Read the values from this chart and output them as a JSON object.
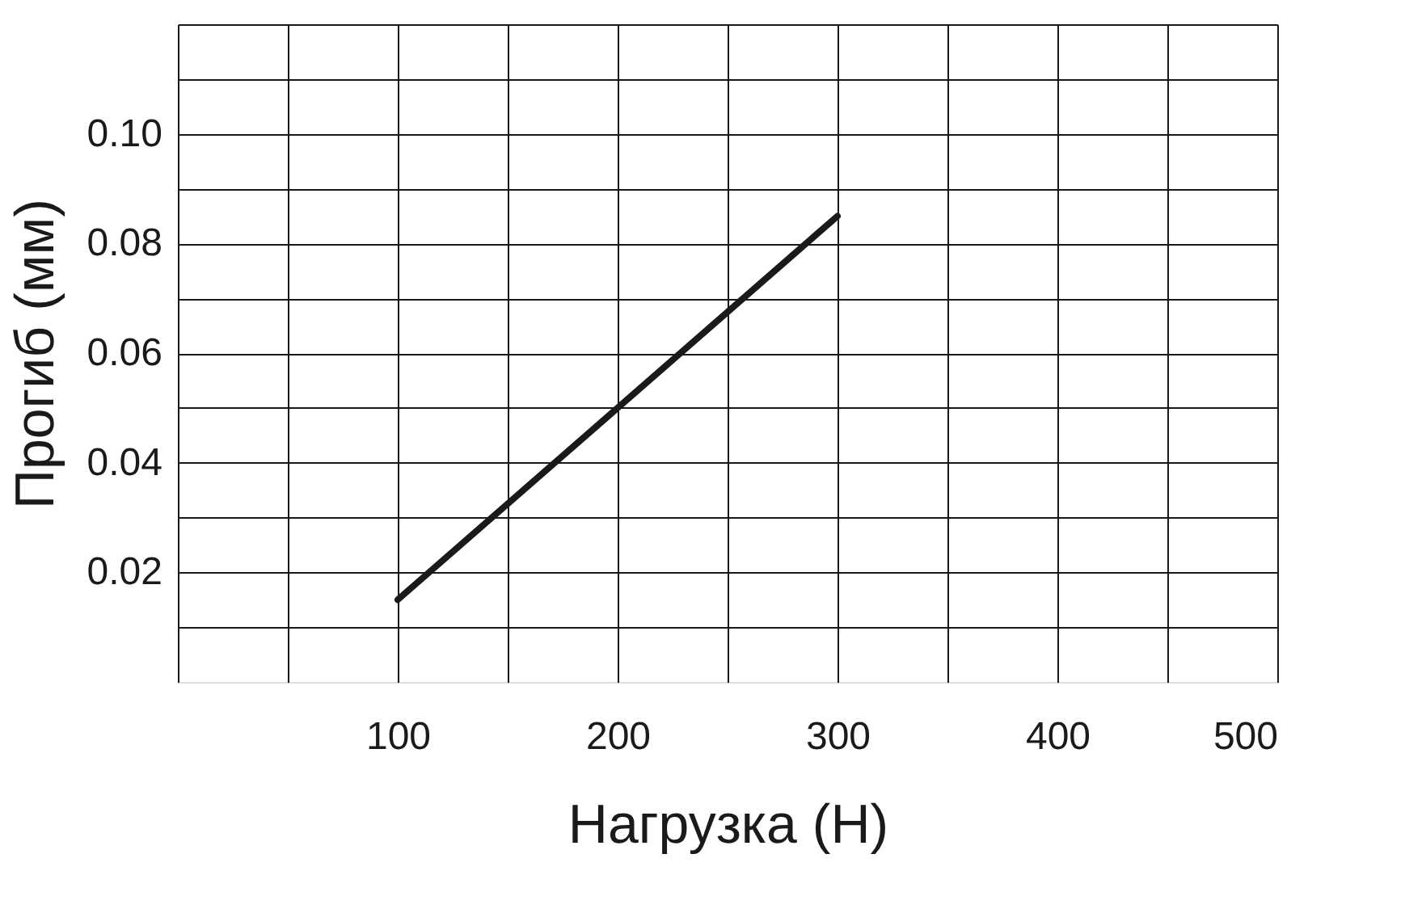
{
  "chart_data": {
    "type": "line",
    "xlabel": "Нагрузка (Н)",
    "ylabel": "Прогиб (мм)",
    "x": [
      100,
      300
    ],
    "series": [
      {
        "color": "#1a1a1a",
        "values": [
          0.015,
          0.085
        ]
      }
    ],
    "xlim": [
      0,
      500
    ],
    "xticks": [
      {
        "value": 0,
        "label": null
      },
      {
        "value": 50,
        "label": null
      },
      100,
      {
        "value": 150,
        "label": null
      },
      200,
      {
        "value": 250,
        "label": null
      },
      300,
      {
        "value": 350,
        "label": null
      },
      400,
      {
        "value": 450,
        "label": null
      },
      500
    ],
    "ylim": [
      0,
      0.12
    ],
    "yticks": [
      {
        "value": 0.01,
        "label": null
      },
      {
        "value": 0.02,
        "label": "0.02"
      },
      {
        "value": 0.03,
        "label": null
      },
      {
        "value": 0.04,
        "label": "0.04"
      },
      {
        "value": 0.05,
        "label": null
      },
      {
        "value": 0.06,
        "label": "0.06"
      },
      {
        "value": 0.07,
        "label": null
      },
      {
        "value": 0.08,
        "label": "0.08"
      },
      {
        "value": 0.09,
        "label": null
      },
      {
        "value": 0.1,
        "label": "0.10"
      },
      {
        "value": 0.11,
        "label": null
      },
      {
        "value": 0.12,
        "label": null
      }
    ],
    "grid": true,
    "legend": false,
    "marker": "none",
    "line_style": "solid"
  }
}
